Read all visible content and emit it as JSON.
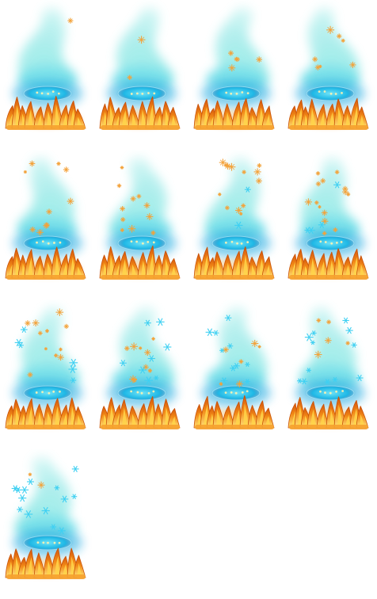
{
  "sprite_sheet": {
    "columns": 4,
    "rows": 4,
    "frames": [
      {
        "frame": 1,
        "sparkle_level": 0.05,
        "snowflakes": 0
      },
      {
        "frame": 2,
        "sparkle_level": 0.15,
        "snowflakes": 0
      },
      {
        "frame": 3,
        "sparkle_level": 0.3,
        "snowflakes": 0
      },
      {
        "frame": 4,
        "sparkle_level": 0.45,
        "snowflakes": 0
      },
      {
        "frame": 5,
        "sparkle_level": 0.6,
        "snowflakes": 0
      },
      {
        "frame": 6,
        "sparkle_level": 0.7,
        "snowflakes": 0
      },
      {
        "frame": 7,
        "sparkle_level": 0.8,
        "snowflakes": 1
      },
      {
        "frame": 8,
        "sparkle_level": 0.85,
        "snowflakes": 2
      },
      {
        "frame": 9,
        "sparkle_level": 0.7,
        "snowflakes": 3
      },
      {
        "frame": 10,
        "sparkle_level": 0.55,
        "snowflakes": 4
      },
      {
        "frame": 11,
        "sparkle_level": 0.4,
        "snowflakes": 5
      },
      {
        "frame": 12,
        "sparkle_level": 0.3,
        "snowflakes": 6
      },
      {
        "frame": 13,
        "sparkle_level": 0.15,
        "snowflakes": 7
      }
    ],
    "colors": {
      "smoke": "#8fe8e6",
      "portal": "#1fb8e6",
      "portal_core": "#6fe3f7",
      "flame_outer": "#f28a17",
      "flame_inner": "#ffd54a",
      "sparkle": "#f3a23a",
      "snowflake": "#3fd0f2"
    }
  }
}
